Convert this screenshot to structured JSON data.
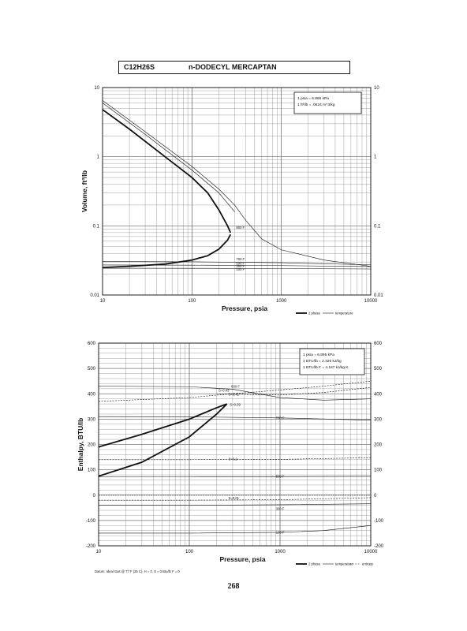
{
  "header": {
    "formula": "C12H26S",
    "name": "n-DODECYL MERCAPTAN"
  },
  "page_number": "268",
  "chart_data": [
    {
      "type": "line",
      "xscale": "log",
      "yscale": "log",
      "xlabel": "Pressure,  psia",
      "ylabel": "Volume,  ft^3/lb",
      "xlim": [
        10,
        10000
      ],
      "ylim": [
        0.01,
        10
      ],
      "x_ticks": [
        "10",
        "100",
        "1000",
        "10000"
      ],
      "y_ticks": [
        "0.01",
        "0.1",
        "1",
        "10"
      ],
      "grid": true,
      "conversion_box": [
        "1 psia  =  6.895 kPa",
        "1 ft^3/lb  =  .0624 m^3/kg"
      ],
      "legend": [
        "2 phase",
        "temperature"
      ],
      "isotherm_labels": [
        "800 F",
        "700 F",
        "500 F",
        "300 F",
        "100 F"
      ],
      "series": [
        {
          "role": "two-phase-liquid",
          "x": [
            10,
            20,
            50,
            100,
            150,
            200,
            250,
            270
          ],
          "y": [
            0.025,
            0.026,
            0.028,
            0.032,
            0.037,
            0.046,
            0.062,
            0.075
          ]
        },
        {
          "role": "two-phase-vapor",
          "x": [
            10,
            20,
            50,
            100,
            150,
            200,
            250,
            270
          ],
          "y": [
            4.8,
            2.5,
            1.0,
            0.5,
            0.3,
            0.17,
            0.1,
            0.08
          ]
        },
        {
          "role": "isotherm-800F",
          "x": [
            10,
            30,
            100,
            200,
            300,
            400,
            600,
            1000,
            3000,
            10000
          ],
          "y": [
            6.5,
            2.3,
            0.72,
            0.34,
            0.2,
            0.12,
            0.065,
            0.045,
            0.032,
            0.026
          ]
        },
        {
          "role": "isotherm-700F",
          "x": [
            10,
            30,
            100,
            200,
            300
          ],
          "y": [
            6.0,
            2.1,
            0.64,
            0.3,
            0.16
          ]
        },
        {
          "role": "isotherm-500F",
          "x": [
            10,
            100,
            1000,
            10000
          ],
          "y": [
            0.0305,
            0.0302,
            0.0293,
            0.0273
          ]
        },
        {
          "role": "isotherm-300F",
          "x": [
            10,
            100,
            1000,
            10000
          ],
          "y": [
            0.0272,
            0.027,
            0.0266,
            0.0258
          ]
        },
        {
          "role": "isotherm-100F",
          "x": [
            10,
            100,
            1000,
            10000
          ],
          "y": [
            0.0244,
            0.0243,
            0.0241,
            0.0238
          ]
        }
      ]
    },
    {
      "type": "line",
      "xscale": "log",
      "yscale": "linear",
      "xlabel": "Pressure,  psia",
      "ylabel": "Enthalpy,  BTU/lb",
      "xlim": [
        10,
        10000
      ],
      "ylim": [
        -200,
        600
      ],
      "x_ticks": [
        "10",
        "100",
        "1000",
        "10000"
      ],
      "y_ticks": [
        "600",
        "500",
        "400",
        "300",
        "200",
        "100",
        "0",
        "-100",
        "-200"
      ],
      "grid": true,
      "conversion_box": [
        "1 psia  =  6.895 kPa",
        "1 BTU/lb  =  2.326 kJ/kg",
        "1 BTU/lb F  =  4.187 kJ/kg K"
      ],
      "legend": [
        "2 phase",
        "temperature",
        "entropy"
      ],
      "footnote": "Datum: Ideal Gas @ 77 F (25 C),  H = 0,  S = 0 Btu/lb F = 0",
      "labels": [
        "800 F",
        "S=0.43",
        "S=0.41",
        "S=0.39",
        "700 F",
        "S=0.2",
        "500 F",
        "S=0.01",
        "300 F",
        "100 F"
      ],
      "series": [
        {
          "role": "two-phase-vapor",
          "x": [
            10,
            30,
            100,
            200,
            260
          ],
          "y": [
            190,
            240,
            300,
            345,
            360
          ]
        },
        {
          "role": "two-phase-liquid",
          "x": [
            10,
            30,
            100,
            200,
            260
          ],
          "y": [
            75,
            130,
            230,
            320,
            360
          ]
        },
        {
          "role": "isotherm-800F",
          "x": [
            10,
            100,
            300,
            1000,
            3000,
            10000
          ],
          "y": [
            430,
            428,
            418,
            385,
            375,
            380
          ]
        },
        {
          "role": "isotherm-700F",
          "x": [
            10,
            100,
            1000,
            10000
          ],
          "y": [
            310,
            309,
            305,
            296
          ]
        },
        {
          "role": "isotherm-500F",
          "x": [
            10,
            100,
            1000,
            10000
          ],
          "y": [
            72,
            72,
            73,
            74
          ]
        },
        {
          "role": "isotherm-300F",
          "x": [
            10,
            100,
            1000,
            10000
          ],
          "y": [
            -40,
            -40,
            -38,
            -34
          ]
        },
        {
          "role": "isotherm-100F",
          "x": [
            10,
            100,
            1000,
            3000,
            10000
          ],
          "y": [
            -150,
            -150,
            -147,
            -140,
            -120
          ]
        },
        {
          "role": "entropy-S0.43",
          "x": [
            10,
            100,
            300,
            1000,
            3000,
            10000
          ],
          "y": [
            370,
            385,
            400,
            415,
            430,
            450
          ]
        },
        {
          "role": "entropy-S0.41",
          "x": [
            200,
            1000,
            3000,
            10000
          ],
          "y": [
            400,
            395,
            405,
            425
          ]
        },
        {
          "role": "entropy-S0.2",
          "x": [
            10,
            100,
            1000,
            10000
          ],
          "y": [
            140,
            140,
            141,
            148
          ]
        },
        {
          "role": "entropy-S0.01",
          "x": [
            10,
            100,
            1000,
            10000
          ],
          "y": [
            -20,
            -20,
            -18,
            -10
          ]
        }
      ]
    }
  ]
}
